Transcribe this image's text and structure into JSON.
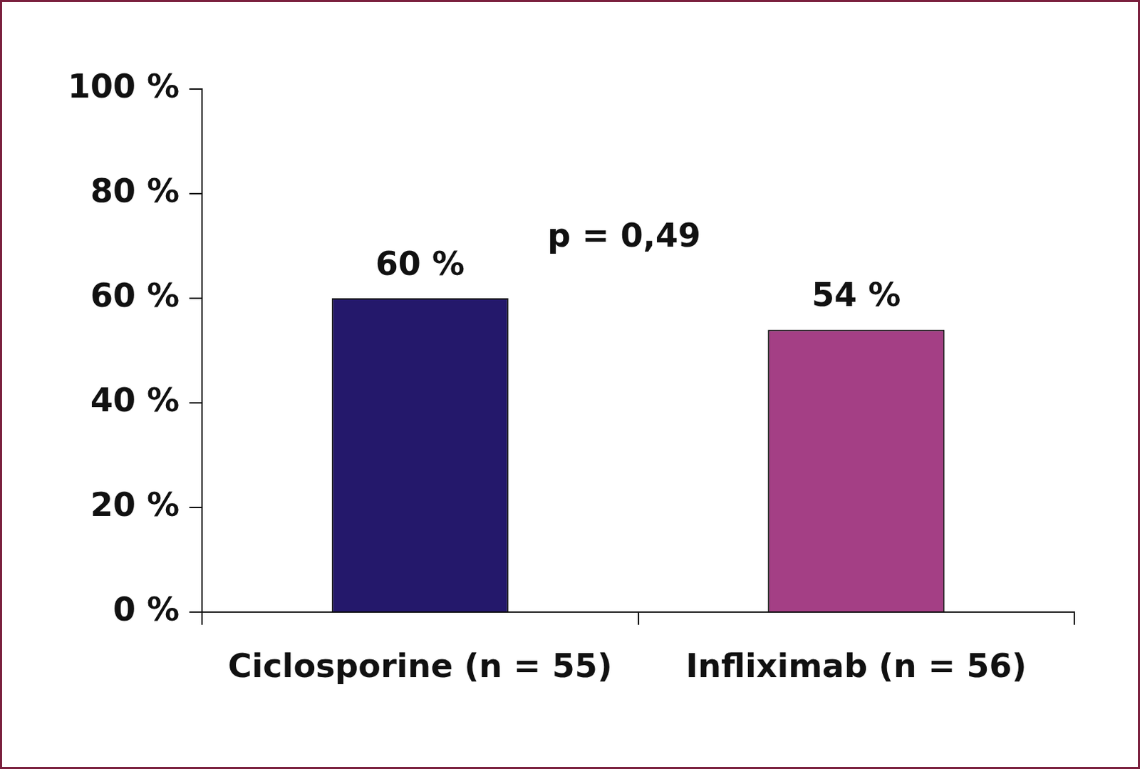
{
  "chart_data": {
    "type": "bar",
    "categories": [
      "Ciclosporine (n = 55)",
      "Infliximab (n = 56)"
    ],
    "values": [
      60,
      54
    ],
    "value_labels": [
      "60 %",
      "54 %"
    ],
    "colors": [
      "#24186b",
      "#a43f85"
    ],
    "annotations": [
      "p = 0,49"
    ],
    "ylim": [
      0,
      100
    ],
    "yticks": [
      {
        "value": 0,
        "label": "0 %"
      },
      {
        "value": 20,
        "label": "20 %"
      },
      {
        "value": 40,
        "label": "40 %"
      },
      {
        "value": 60,
        "label": "60 %"
      },
      {
        "value": 80,
        "label": "80 %"
      },
      {
        "value": 100,
        "label": "100 %"
      }
    ],
    "grid": false,
    "data_labels": true
  }
}
